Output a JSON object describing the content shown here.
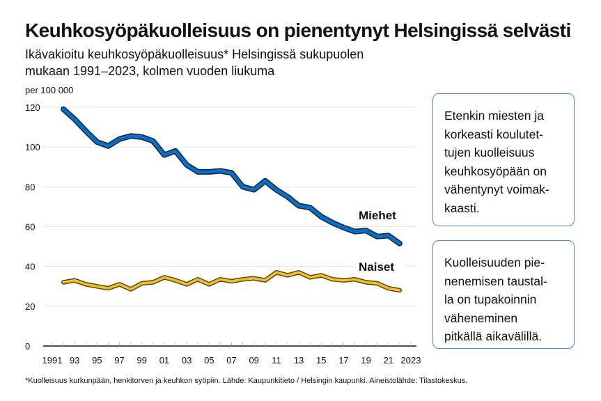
{
  "header": {
    "title": "Keuhkosyöpäkuolleisuus on pienentynyt Helsingissä selvästi",
    "subtitle_lines": [
      "Ikävakioitu keuhkosyöpäkuolleisuus* Helsingissä sukupuolen",
      "mukaan 1991–2023, kolmen vuoden liukuma"
    ]
  },
  "chart_data": {
    "type": "line",
    "ylabel": "per 100 000",
    "ylim": [
      0,
      120
    ],
    "yticks": [
      0,
      20,
      40,
      60,
      80,
      100,
      120
    ],
    "xlim": [
      1991,
      2023
    ],
    "xtick_values": [
      1991,
      1993,
      1995,
      1997,
      1999,
      2001,
      2003,
      2005,
      2007,
      2009,
      2011,
      2013,
      2015,
      2017,
      2019,
      2021,
      2023
    ],
    "xtick_labels": [
      "1991",
      "93",
      "95",
      "97",
      "99",
      "01",
      "03",
      "05",
      "07",
      "09",
      "11",
      "13",
      "15",
      "17",
      "19",
      "21",
      "2023"
    ],
    "grid": true,
    "x": [
      1992,
      1993,
      1994,
      1995,
      1996,
      1997,
      1998,
      1999,
      2000,
      2001,
      2002,
      2003,
      2004,
      2005,
      2006,
      2007,
      2008,
      2009,
      2010,
      2011,
      2012,
      2013,
      2014,
      2015,
      2016,
      2017,
      2018,
      2019,
      2020,
      2021,
      2022
    ],
    "series": [
      {
        "name": "Miehet",
        "color": "#0a6fc2",
        "values": [
          119,
          114,
          108,
          102.5,
          100.5,
          104,
          105.5,
          105,
          103,
          96,
          98,
          91,
          87.5,
          87.5,
          88,
          87,
          80,
          78.5,
          83,
          78.5,
          75,
          70.5,
          69.5,
          65,
          62,
          59.5,
          57.5,
          58,
          55,
          55.5,
          51.5
        ]
      },
      {
        "name": "Naiset",
        "color": "#f5be2d",
        "values": [
          32,
          33,
          31,
          30,
          29,
          31,
          28.5,
          31.5,
          32,
          34.5,
          33,
          31,
          33.5,
          31,
          33.5,
          32.5,
          33.5,
          34,
          33,
          37,
          35.5,
          37,
          34.5,
          35.5,
          33.5,
          33,
          33.5,
          32,
          31.5,
          29,
          28
        ]
      }
    ]
  },
  "notes": [
    {
      "lines": [
        "Etenkin miesten ja",
        "korkeasti koulutet-",
        "tujen kuolleisuus",
        "keuhkosyöpään on",
        "vähentynyt voimak-",
        "kaasti."
      ]
    },
    {
      "lines": [
        "Kuolleisuuden pie-",
        "nenemisen taustal-",
        "la on tupakoinnin",
        "väheneminen",
        "pitkällä aikavälillä."
      ]
    }
  ],
  "footer": "*Kuolleisuus kurkunpään, henkitorven ja keuhkon syöpiin. Lähde: Kaupunkitieto / Helsingin kaupunki. Aineistolähde: Tilastokeskus.",
  "colors": {
    "box_border": "#3d8fd8",
    "grid": "#e3e3e3"
  }
}
